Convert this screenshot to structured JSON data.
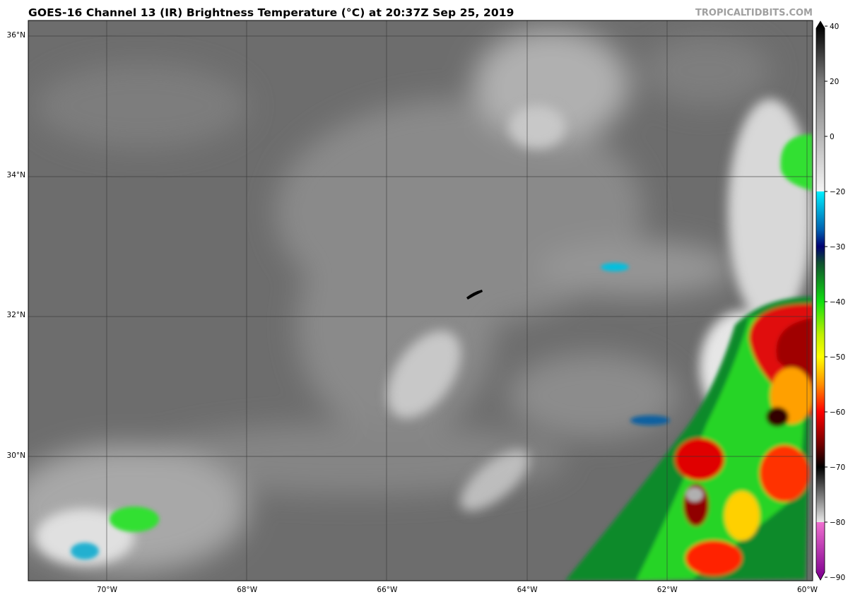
{
  "header": {
    "title": "GOES-16 Channel 13 (IR) Brightness Temperature (°C) at 20:37Z Sep 25, 2019",
    "watermark": "TROPICALTIDBITS.COM"
  },
  "map": {
    "lat_labels": [
      {
        "lat": 36,
        "label": "36°N"
      },
      {
        "lat": 34,
        "label": "34°N"
      },
      {
        "lat": 32,
        "label": "32°N"
      },
      {
        "lat": 30,
        "label": "30°N"
      }
    ],
    "lon_labels": [
      {
        "lon": -70,
        "label": "70°W"
      },
      {
        "lon": -68,
        "label": "68°W"
      },
      {
        "lon": -66,
        "label": "66°W"
      },
      {
        "lon": -64,
        "label": "64°W"
      },
      {
        "lon": -62,
        "label": "62°W"
      },
      {
        "lon": -60,
        "label": "60°W"
      }
    ],
    "extent": {
      "lon": [
        -71.1,
        -59.9
      ],
      "lat": [
        28.25,
        36.25
      ]
    },
    "feature": "Bermuda"
  },
  "colorbar": {
    "unit": "°C",
    "ticks": [
      "40",
      "20",
      "0",
      "−20",
      "−30",
      "−40",
      "−50",
      "−60",
      "−70",
      "−80",
      "−90"
    ],
    "tick_values": [
      40,
      20,
      0,
      -20,
      -30,
      -40,
      -50,
      -60,
      -70,
      -80,
      -90
    ],
    "stops": [
      {
        "t": 40,
        "color": "#000000"
      },
      {
        "t": 20,
        "color": "#7a7a7a"
      },
      {
        "t": -20,
        "color": "#f4f4f4"
      },
      {
        "t": -20.01,
        "color": "#00f0ff"
      },
      {
        "t": -27,
        "color": "#0060b0"
      },
      {
        "t": -30,
        "color": "#000070"
      },
      {
        "t": -33,
        "color": "#105030"
      },
      {
        "t": -40,
        "color": "#10e010"
      },
      {
        "t": -46,
        "color": "#c0f000"
      },
      {
        "t": -50,
        "color": "#ffff00"
      },
      {
        "t": -55,
        "color": "#ff9000"
      },
      {
        "t": -60,
        "color": "#ff0000"
      },
      {
        "t": -66,
        "color": "#700000"
      },
      {
        "t": -70,
        "color": "#000000"
      },
      {
        "t": -80,
        "color": "#e8e8e8"
      },
      {
        "t": -80.01,
        "color": "#f070d0"
      },
      {
        "t": -90,
        "color": "#800090"
      }
    ]
  }
}
